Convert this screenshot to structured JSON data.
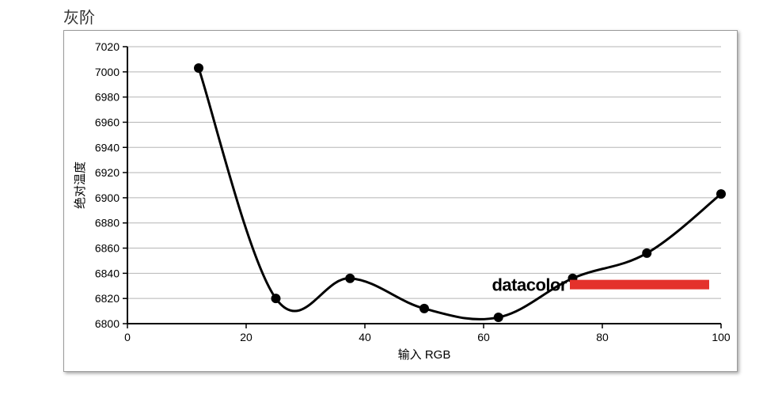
{
  "title": "灰阶",
  "chart": {
    "type": "line",
    "xlabel": "输入 RGB",
    "ylabel": "绝对温度",
    "xlim": [
      0,
      100
    ],
    "ylim": [
      6800,
      7020
    ],
    "xticks": [
      0,
      20,
      40,
      60,
      80,
      100
    ],
    "yticks": [
      6800,
      6820,
      6840,
      6860,
      6880,
      6900,
      6920,
      6940,
      6960,
      6980,
      7000,
      7020
    ],
    "grid_color": "#b5b5b5",
    "grid_width": 1,
    "axis_color": "#000000",
    "axis_width": 2,
    "background_color": "#ffffff",
    "tick_fontsize": 14,
    "label_fontsize": 15,
    "series": {
      "color": "#000000",
      "line_width": 3,
      "marker": "circle",
      "marker_size": 6,
      "x": [
        12,
        25,
        37.5,
        50,
        62.5,
        75,
        87.5,
        100
      ],
      "y": [
        7003,
        6820,
        6836,
        6812,
        6805,
        6836,
        6856,
        6903
      ]
    },
    "curve_smoothing": true,
    "watermark": {
      "text": "datacolor",
      "text_color": "#000000",
      "bar_color": "#e4322b",
      "fontsize": 22,
      "position_x": 74,
      "position_y": 6826
    }
  }
}
